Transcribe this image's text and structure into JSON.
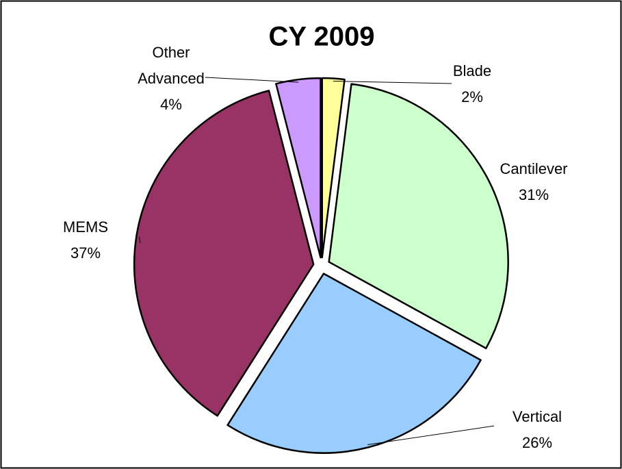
{
  "chart_data": {
    "type": "pie",
    "title": "CY 2009",
    "categories": [
      "Blade",
      "Cantilever",
      "Vertical",
      "MEMS",
      "Other Advanced"
    ],
    "values": [
      2,
      31,
      26,
      37,
      4
    ],
    "value_labels": [
      "2%",
      "31%",
      "26%",
      "37%",
      "4%"
    ],
    "colors": [
      "#ffff99",
      "#ccffcc",
      "#99ccff",
      "#993366",
      "#cc99ff"
    ]
  }
}
